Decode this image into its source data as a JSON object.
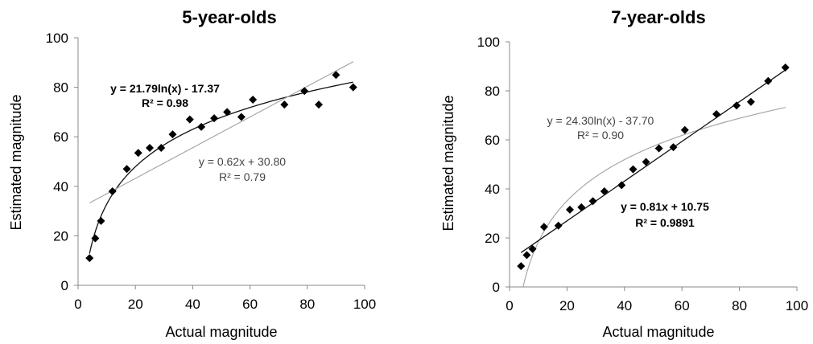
{
  "chart_data": [
    {
      "type": "scatter",
      "title": "5-year-olds",
      "xlabel": "Actual magnitude",
      "ylabel": "Estimated magnitude",
      "xlim": [
        0,
        100
      ],
      "ylim": [
        0,
        100
      ],
      "xticks": [
        0,
        20,
        40,
        60,
        80,
        100
      ],
      "yticks": [
        0,
        20,
        40,
        60,
        80,
        100
      ],
      "points": [
        [
          4,
          11
        ],
        [
          6,
          19
        ],
        [
          8,
          26
        ],
        [
          12,
          38
        ],
        [
          17,
          47
        ],
        [
          21,
          53.5
        ],
        [
          25,
          55.5
        ],
        [
          29,
          55.5
        ],
        [
          33,
          61
        ],
        [
          39,
          67
        ],
        [
          43,
          64
        ],
        [
          47.5,
          67.5
        ],
        [
          52,
          70
        ],
        [
          57,
          68
        ],
        [
          61,
          75
        ],
        [
          72,
          73
        ],
        [
          79,
          78.5
        ],
        [
          84,
          73
        ],
        [
          90,
          85
        ],
        [
          96,
          80
        ]
      ],
      "fits": [
        {
          "kind": "log",
          "a": 21.79,
          "b": -17.37,
          "emphasis": "bold",
          "equation": "y = 21.79ln(x) - 17.37",
          "r2": "R² = 0.98"
        },
        {
          "kind": "linear",
          "a": 0.62,
          "b": 30.8,
          "emphasis": "light",
          "equation": "y = 0.62x + 30.80",
          "r2": "R² = 0.79"
        }
      ]
    },
    {
      "type": "scatter",
      "title": "7-year-olds",
      "xlabel": "Actual magnitude",
      "ylabel": "Estimated magnitude",
      "xlim": [
        0,
        100
      ],
      "ylim": [
        0,
        100
      ],
      "xticks": [
        0,
        20,
        40,
        60,
        80,
        100
      ],
      "yticks": [
        0,
        20,
        40,
        60,
        80,
        100
      ],
      "points": [
        [
          4,
          8.5
        ],
        [
          6,
          13
        ],
        [
          8,
          15.5
        ],
        [
          12,
          24.5
        ],
        [
          17,
          25
        ],
        [
          21,
          31.5
        ],
        [
          25,
          32.5
        ],
        [
          29,
          35
        ],
        [
          33,
          39
        ],
        [
          39,
          41.5
        ],
        [
          43,
          48
        ],
        [
          47.5,
          51
        ],
        [
          52,
          56.5
        ],
        [
          57,
          57
        ],
        [
          61,
          64
        ],
        [
          72,
          70.5
        ],
        [
          79,
          74
        ],
        [
          84,
          75.5
        ],
        [
          90,
          84
        ],
        [
          96,
          89.5
        ]
      ],
      "fits": [
        {
          "kind": "log",
          "a": 24.3,
          "b": -37.7,
          "emphasis": "light",
          "equation": "y = 24.30ln(x) - 37.70",
          "r2": "R² = 0.90"
        },
        {
          "kind": "linear",
          "a": 0.81,
          "b": 10.75,
          "emphasis": "bold",
          "equation": "y = 0.81x + 10.75",
          "r2": "R² = 0.9891"
        }
      ]
    }
  ]
}
